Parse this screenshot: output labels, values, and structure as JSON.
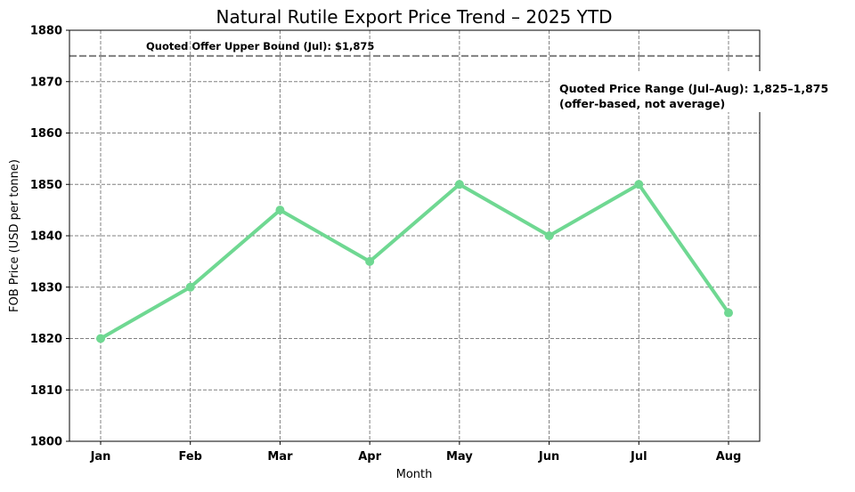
{
  "chart_data": {
    "type": "line",
    "title": "Natural Rutile Export Price Trend – 2025 YTD",
    "xlabel": "Month",
    "ylabel": "FOB Price (USD per tonne)",
    "categories": [
      "Jan",
      "Feb",
      "Mar",
      "Apr",
      "May",
      "Jun",
      "Jul",
      "Aug"
    ],
    "series": [
      {
        "values": [
          1820,
          1830,
          1845,
          1835,
          1850,
          1840,
          1850,
          1825
        ]
      }
    ],
    "ylim": [
      1800,
      1880
    ],
    "yticks": [
      1800,
      1810,
      1820,
      1830,
      1840,
      1850,
      1860,
      1870,
      1880
    ],
    "grid": true,
    "line_color": "#6fd892",
    "reference_line": {
      "value": 1875,
      "label": "Quoted Offer Upper Bound (Jul): $1,875",
      "color": "#808080"
    },
    "annotation": {
      "line1": "Quoted Price Range (Jul–Aug): 1,825–1,875",
      "line2": "(offer-based, not average)"
    }
  }
}
